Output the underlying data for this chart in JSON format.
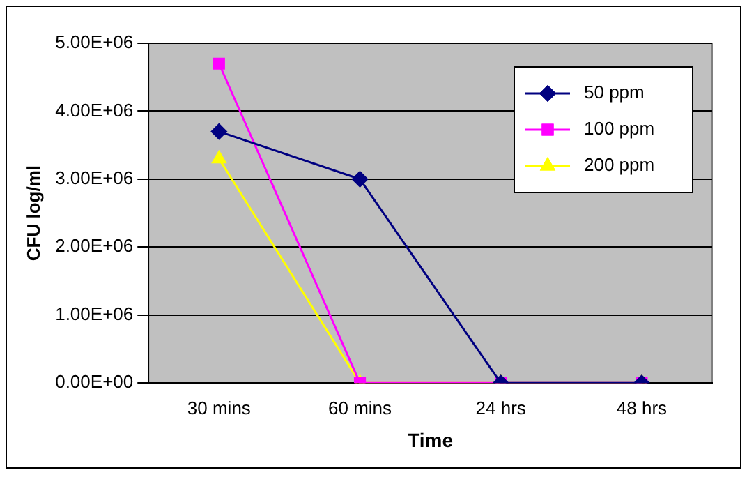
{
  "chart_data": {
    "type": "line",
    "xlabel": "Time",
    "ylabel": "CFU log/ml",
    "categories": [
      "30 mins",
      "60 mins",
      "24 hrs",
      "48 hrs"
    ],
    "series": [
      {
        "name": "50 ppm",
        "color": "#000080",
        "marker": "diamond",
        "values": [
          3700000,
          3000000,
          0,
          0
        ]
      },
      {
        "name": "100 ppm",
        "color": "#ff00ff",
        "marker": "square",
        "values": [
          4700000,
          0,
          0,
          0
        ]
      },
      {
        "name": "200 ppm",
        "color": "#ffff00",
        "marker": "triangle",
        "values": [
          3300000,
          0,
          0,
          0
        ]
      }
    ],
    "ylim": [
      0,
      5000000
    ],
    "yticks": [
      {
        "value": 0,
        "label": "0.00E+00"
      },
      {
        "value": 1000000,
        "label": "1.00E+06"
      },
      {
        "value": 2000000,
        "label": "2.00E+06"
      },
      {
        "value": 3000000,
        "label": "3.00E+06"
      },
      {
        "value": 4000000,
        "label": "4.00E+06"
      },
      {
        "value": 5000000,
        "label": "5.00E+06"
      }
    ],
    "grid": "y",
    "legend": "top right",
    "line_style": "solid"
  }
}
